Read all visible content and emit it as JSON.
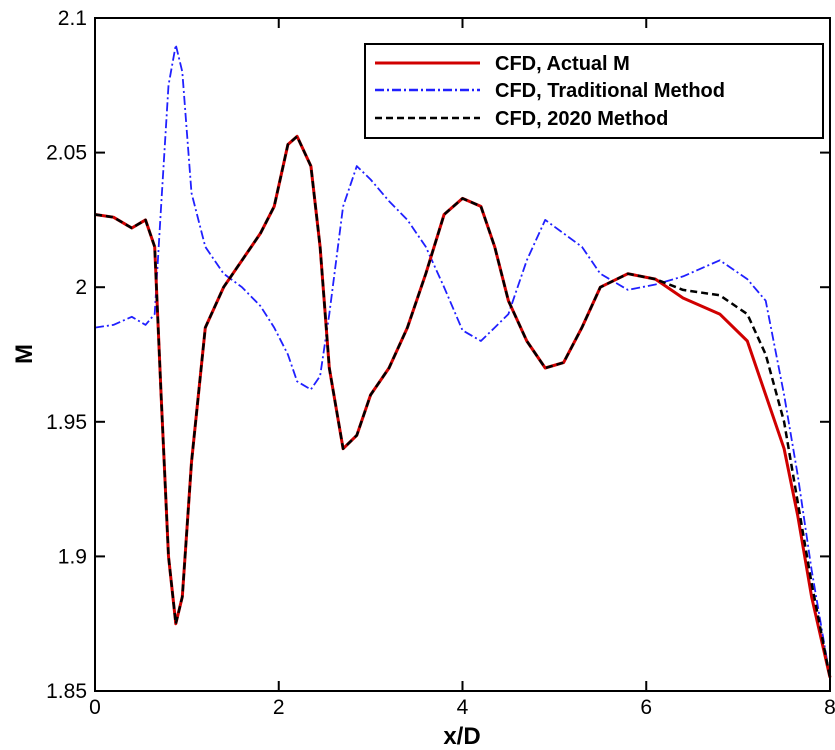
{
  "chart_data": {
    "type": "line",
    "xlabel": "x/D",
    "ylabel": "M",
    "xlim": [
      0,
      8
    ],
    "ylim": [
      1.85,
      2.1
    ],
    "xticks": [
      0,
      2,
      4,
      6,
      8
    ],
    "yticks": [
      1.85,
      1.9,
      1.95,
      2,
      2.05,
      2.1
    ],
    "xtick_labels": [
      "0",
      "2",
      "4",
      "6",
      "8"
    ],
    "ytick_labels": [
      "1.85",
      "1.9",
      "1.95",
      "2",
      "2.05",
      "2.1"
    ],
    "grid": false,
    "legend_position": "top-right",
    "series": [
      {
        "name": "CFD, Actual M",
        "color": "#d00000",
        "dash": "solid",
        "x": [
          0,
          0.2,
          0.4,
          0.55,
          0.65,
          0.72,
          0.8,
          0.88,
          0.95,
          1.05,
          1.2,
          1.4,
          1.6,
          1.8,
          1.95,
          2.1,
          2.2,
          2.35,
          2.45,
          2.55,
          2.7,
          2.85,
          3.0,
          3.2,
          3.4,
          3.6,
          3.8,
          4.0,
          4.2,
          4.35,
          4.5,
          4.7,
          4.9,
          5.1,
          5.3,
          5.5,
          5.8,
          6.1,
          6.4,
          6.8,
          7.1,
          7.3,
          7.5,
          7.65,
          7.8,
          8.0
        ],
        "values": [
          2.027,
          2.026,
          2.022,
          2.025,
          2.015,
          1.96,
          1.9,
          1.875,
          1.885,
          1.935,
          1.985,
          2.0,
          2.01,
          2.02,
          2.03,
          2.053,
          2.056,
          2.045,
          2.015,
          1.97,
          1.94,
          1.945,
          1.96,
          1.97,
          1.985,
          2.005,
          2.027,
          2.033,
          2.03,
          2.015,
          1.995,
          1.98,
          1.97,
          1.972,
          1.985,
          2.0,
          2.005,
          2.003,
          1.996,
          1.99,
          1.98,
          1.96,
          1.94,
          1.915,
          1.885,
          1.855
        ]
      },
      {
        "name": "CFD, Traditional Method",
        "color": "#2020ff",
        "dash": "dashdot",
        "x": [
          0,
          0.2,
          0.4,
          0.55,
          0.65,
          0.72,
          0.8,
          0.88,
          0.95,
          1.05,
          1.2,
          1.4,
          1.6,
          1.8,
          1.95,
          2.1,
          2.2,
          2.35,
          2.45,
          2.55,
          2.7,
          2.85,
          3.0,
          3.2,
          3.4,
          3.6,
          3.8,
          4.0,
          4.2,
          4.35,
          4.5,
          4.7,
          4.9,
          5.1,
          5.3,
          5.5,
          5.8,
          6.1,
          6.4,
          6.8,
          7.1,
          7.3,
          7.5,
          7.65,
          7.8,
          8.0
        ],
        "values": [
          1.985,
          1.986,
          1.989,
          1.986,
          1.99,
          2.03,
          2.075,
          2.09,
          2.08,
          2.035,
          2.015,
          2.005,
          2.0,
          1.993,
          1.985,
          1.975,
          1.965,
          1.962,
          1.967,
          1.99,
          2.03,
          2.045,
          2.04,
          2.032,
          2.025,
          2.015,
          2.0,
          1.984,
          1.98,
          1.985,
          1.99,
          2.01,
          2.025,
          2.02,
          2.015,
          2.005,
          1.999,
          2.001,
          2.004,
          2.01,
          2.003,
          1.995,
          1.96,
          1.93,
          1.895,
          1.855
        ]
      },
      {
        "name": "CFD, 2020 Method",
        "color": "#000000",
        "dash": "dashed",
        "x": [
          0,
          0.2,
          0.4,
          0.55,
          0.65,
          0.72,
          0.8,
          0.88,
          0.95,
          1.05,
          1.2,
          1.4,
          1.6,
          1.8,
          1.95,
          2.1,
          2.2,
          2.35,
          2.45,
          2.55,
          2.7,
          2.85,
          3.0,
          3.2,
          3.4,
          3.6,
          3.8,
          4.0,
          4.2,
          4.35,
          4.5,
          4.7,
          4.9,
          5.1,
          5.3,
          5.5,
          5.8,
          6.1,
          6.4,
          6.8,
          7.1,
          7.3,
          7.5,
          7.65,
          7.8,
          8.0
        ],
        "values": [
          2.027,
          2.026,
          2.022,
          2.025,
          2.015,
          1.96,
          1.9,
          1.875,
          1.885,
          1.935,
          1.985,
          2.0,
          2.01,
          2.02,
          2.03,
          2.053,
          2.056,
          2.045,
          2.015,
          1.97,
          1.94,
          1.945,
          1.96,
          1.97,
          1.985,
          2.005,
          2.027,
          2.033,
          2.03,
          2.015,
          1.995,
          1.98,
          1.97,
          1.972,
          1.985,
          2.0,
          2.005,
          2.003,
          1.999,
          1.997,
          1.99,
          1.975,
          1.95,
          1.92,
          1.89,
          1.855
        ]
      }
    ]
  }
}
